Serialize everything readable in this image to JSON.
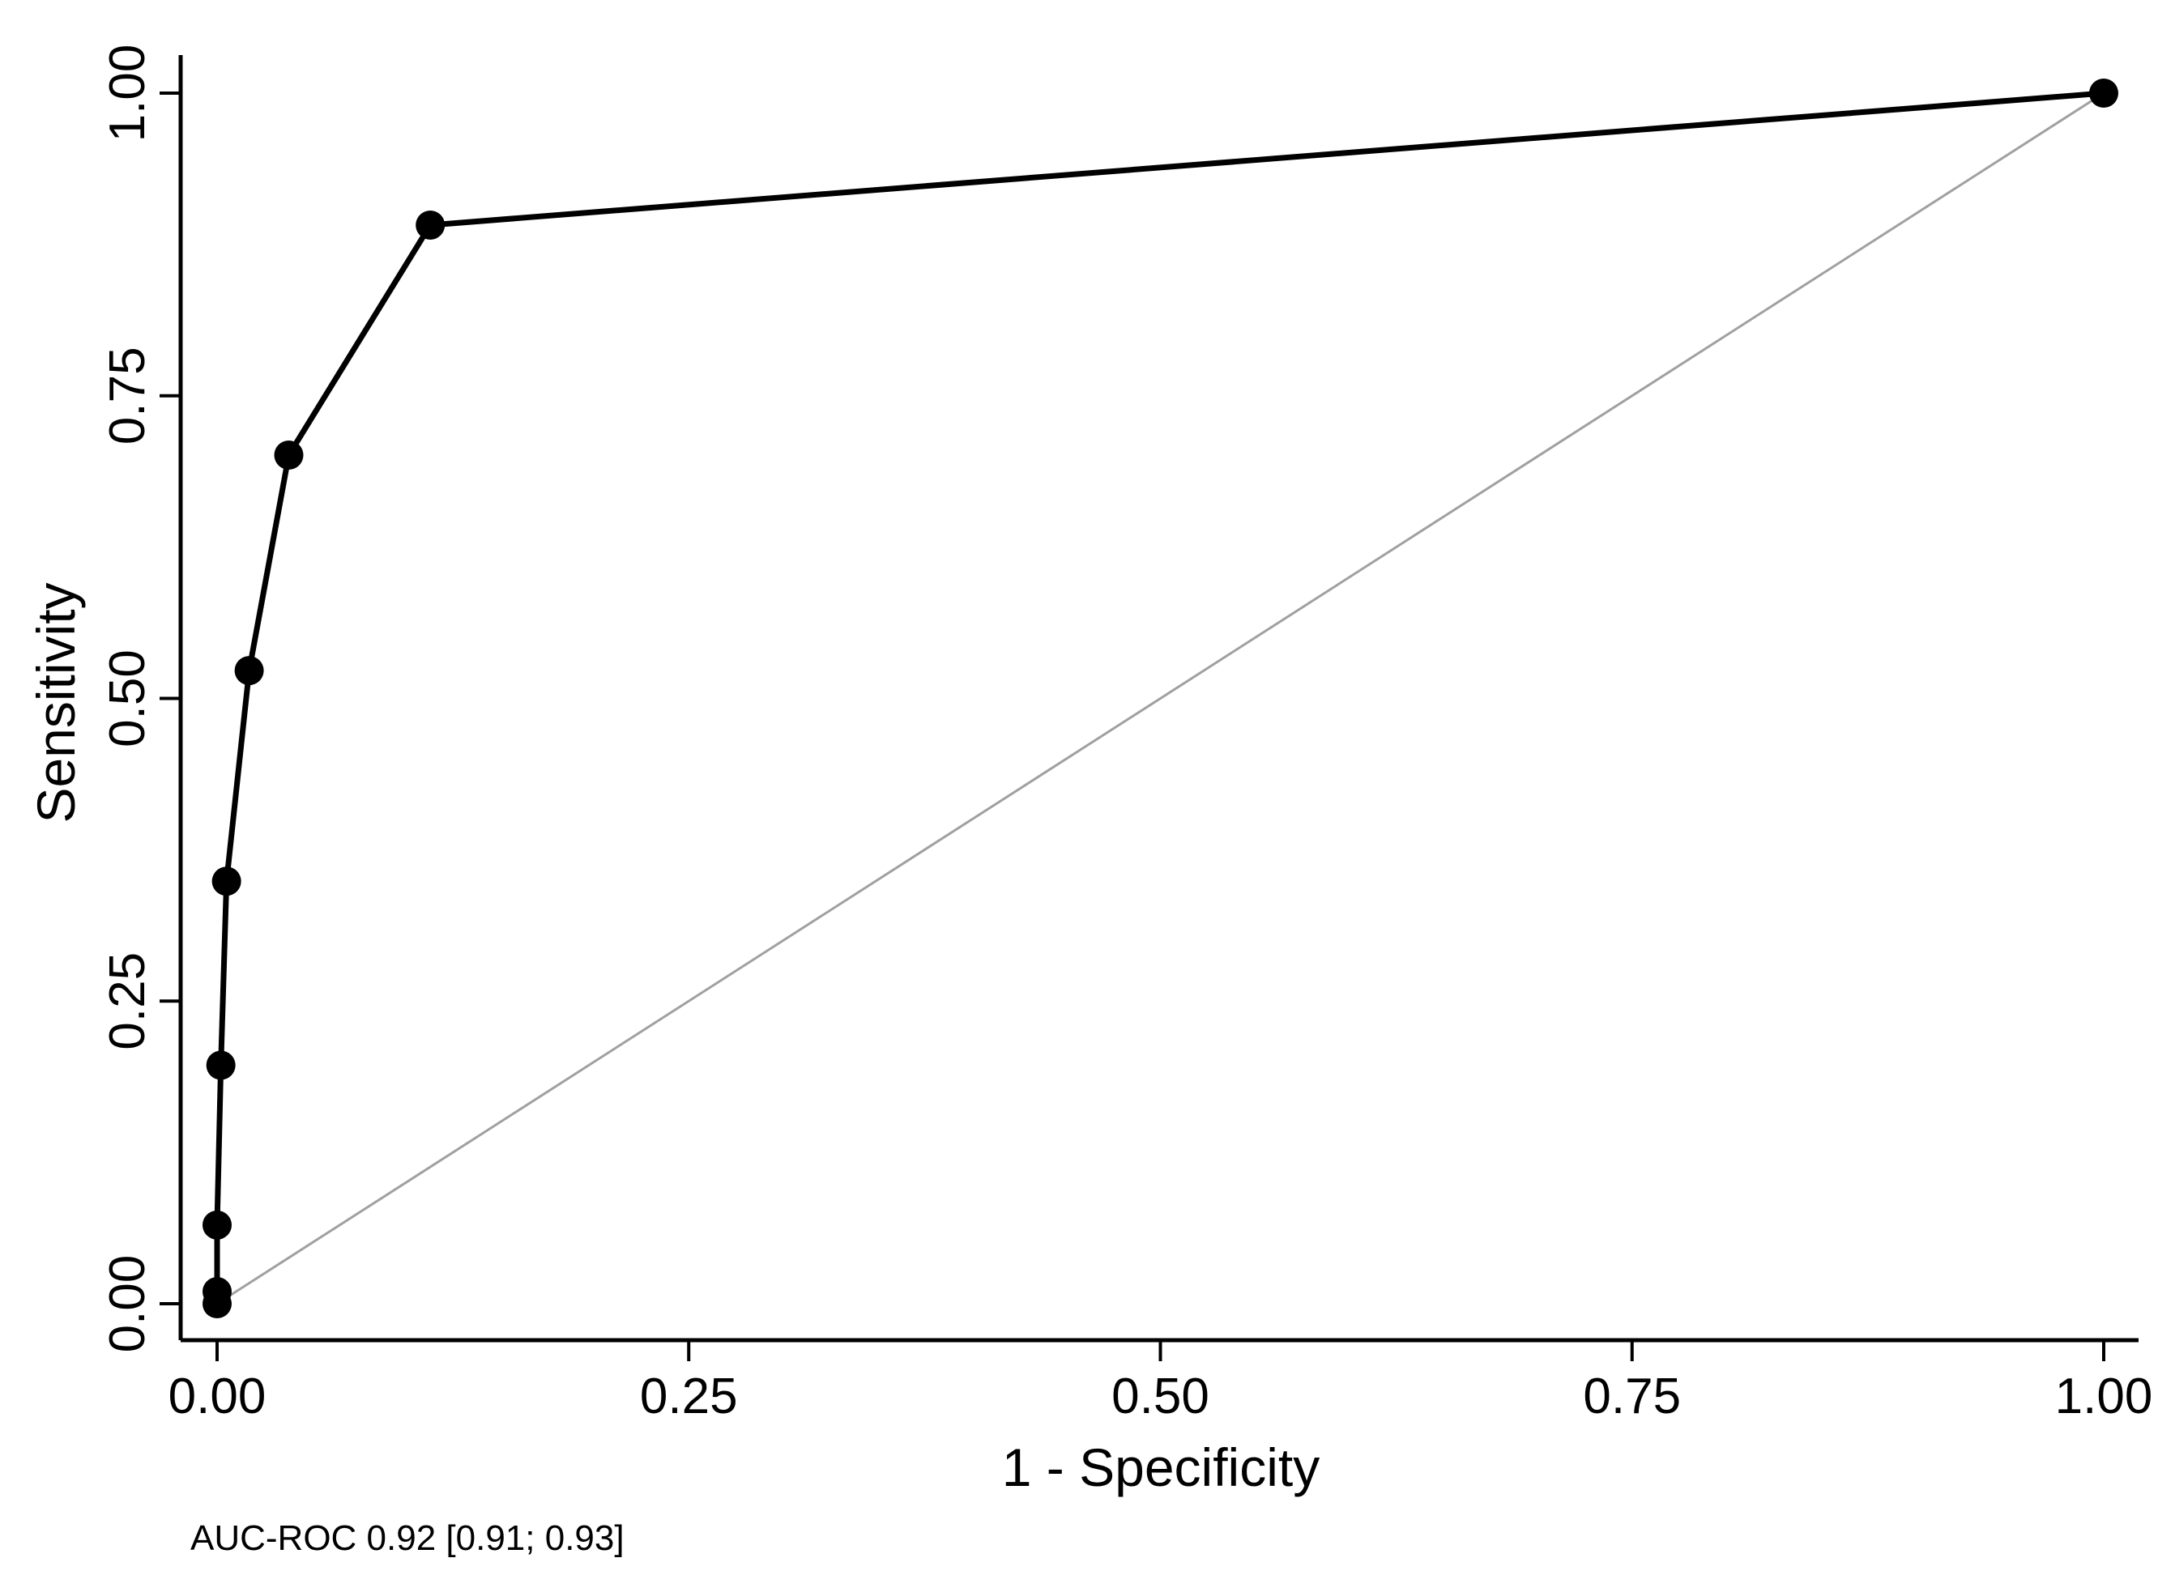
{
  "chart_data": {
    "type": "line",
    "title": "",
    "xlabel": "1 - Specificity",
    "ylabel": "Sensitivity",
    "xlim": [
      0,
      1
    ],
    "ylim": [
      0,
      1
    ],
    "x_ticks": [
      "0.00",
      "0.25",
      "0.50",
      "0.75",
      "1.00"
    ],
    "y_ticks": [
      "0.00",
      "0.25",
      "0.50",
      "0.75",
      "1.00"
    ],
    "grid": false,
    "legend": "none",
    "series": [
      {
        "x": [
          0.0,
          0.0,
          0.0,
          0.002,
          0.005,
          0.017,
          0.038,
          0.113,
          1.0
        ],
        "y": [
          0.0,
          0.01,
          0.065,
          0.197,
          0.349,
          0.523,
          0.701,
          0.891,
          1.0
        ],
        "color": "#000000",
        "markers": true
      }
    ],
    "reference_line": {
      "x": [
        0,
        1
      ],
      "y": [
        0,
        1
      ],
      "color": "#a0a0a0"
    },
    "annotation": "AUC-ROC 0.92 [0.91; 0.93]"
  }
}
